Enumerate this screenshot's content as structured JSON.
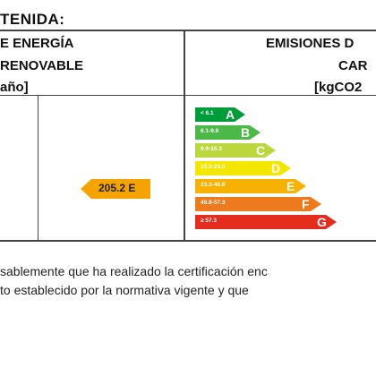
{
  "section_heading": "TENIDA:",
  "left_column_header": [
    "E ENERGÍA",
    "RENOVABLE",
    " año]"
  ],
  "right_column_header": [
    "EMISIONES D",
    "CAR",
    "[kgCO2"
  ],
  "indicator": {
    "value_label": "205.2 E",
    "color": "#f4a300"
  },
  "rating_scale": [
    {
      "letter": "A",
      "range": "< 6.1",
      "color": "#009b3a"
    },
    {
      "letter": "B",
      "range": "6.1-9.9",
      "color": "#4cb848"
    },
    {
      "letter": "C",
      "range": "9.9-15.3",
      "color": "#bcd63d"
    },
    {
      "letter": "D",
      "range": "15.3-23.3",
      "color": "#f3e600"
    },
    {
      "letter": "E",
      "range": "23.3-49.8",
      "color": "#f7b100"
    },
    {
      "letter": "F",
      "range": "49.8-57.3",
      "color": "#ee7a1e"
    },
    {
      "letter": "G",
      "range": "≥ 57.3",
      "color": "#e52d1f"
    }
  ],
  "footer_lines": [
    "sablemente que ha realizado la certificación enc",
    "to establecido por la normativa vigente y que"
  ]
}
